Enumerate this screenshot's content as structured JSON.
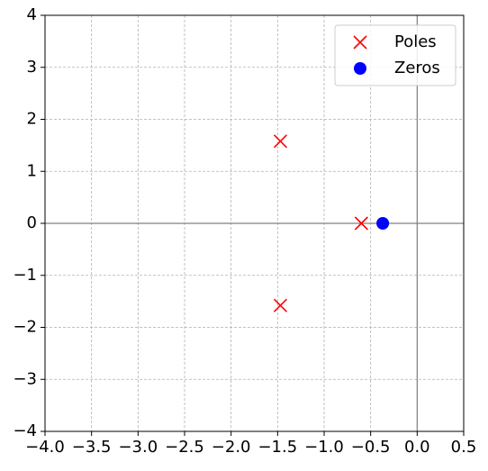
{
  "chart_data": {
    "type": "scatter",
    "series": [
      {
        "name": "Poles",
        "color": "#ff0000",
        "marker": "x",
        "x": [
          -1.47,
          -1.47,
          -0.6
        ],
        "values": [
          1.58,
          -1.58,
          0
        ]
      },
      {
        "name": "Zeros",
        "color": "#0000ff",
        "marker": "o",
        "x": [
          -0.37
        ],
        "values": [
          0
        ]
      }
    ],
    "xlim": [
      -4,
      0.5
    ],
    "xticks": [
      {
        "value": -4,
        "label": "−4.0"
      },
      {
        "value": -3.5,
        "label": "−3.5"
      },
      {
        "value": -3,
        "label": "−3.0"
      },
      {
        "value": -2.5,
        "label": "−2.5"
      },
      {
        "value": -2,
        "label": "−2.0"
      },
      {
        "value": -1.5,
        "label": "−1.5"
      },
      {
        "value": -1,
        "label": "−1.0"
      },
      {
        "value": -0.5,
        "label": "−0.5"
      },
      {
        "value": 0,
        "label": "0.0"
      },
      0.5
    ],
    "ylim": [
      -4,
      4
    ],
    "yticks": [
      {
        "value": -4,
        "label": "−4"
      },
      {
        "value": -3,
        "label": "−3"
      },
      {
        "value": -2,
        "label": "−2"
      },
      {
        "value": -1,
        "label": "−1"
      },
      0,
      1,
      2,
      3,
      4
    ],
    "axhline": 0,
    "axvline": 0,
    "grid": true,
    "legend": "upper right"
  }
}
